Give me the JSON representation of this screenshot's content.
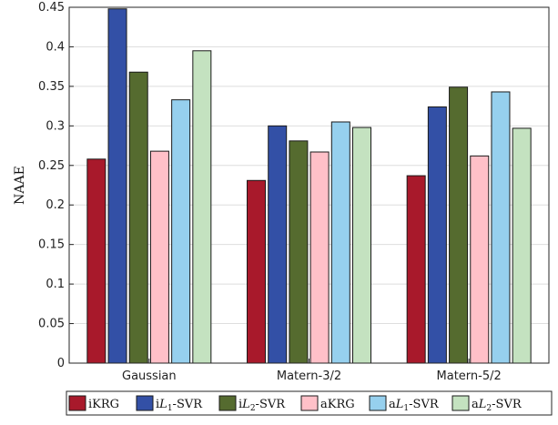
{
  "chart_data": {
    "type": "bar",
    "categories": [
      "Gaussian",
      "Matern-3/2",
      "Matern-5/2"
    ],
    "series": [
      {
        "name": "iKRG",
        "color": "#a8192b",
        "values": [
          0.258,
          0.231,
          0.237
        ]
      },
      {
        "name": "iL1-SVR",
        "color": "#3350a6",
        "values": [
          0.448,
          0.3,
          0.324
        ]
      },
      {
        "name": "iL2-SVR",
        "color": "#556b2f",
        "values": [
          0.368,
          0.281,
          0.349
        ]
      },
      {
        "name": "aKRG",
        "color": "#ffc0c8",
        "values": [
          0.268,
          0.267,
          0.262
        ]
      },
      {
        "name": "aL1-SVR",
        "color": "#96d0ee",
        "values": [
          0.333,
          0.305,
          0.343
        ]
      },
      {
        "name": "aL2-SVR",
        "color": "#c4e2c0",
        "values": [
          0.395,
          0.298,
          0.297
        ]
      }
    ],
    "legend_labels": [
      {
        "pre": "iKRG",
        "italic": "",
        "sub": "",
        "post": ""
      },
      {
        "pre": "i",
        "italic": "L",
        "sub": "1",
        "post": "-SVR"
      },
      {
        "pre": "i",
        "italic": "L",
        "sub": "2",
        "post": "-SVR"
      },
      {
        "pre": "aKRG",
        "italic": "",
        "sub": "",
        "post": ""
      },
      {
        "pre": "a",
        "italic": "L",
        "sub": "1",
        "post": "-SVR"
      },
      {
        "pre": "a",
        "italic": "L",
        "sub": "2",
        "post": "-SVR"
      }
    ],
    "ylabel": "NAAE",
    "xlabel": "",
    "title": "",
    "ylim": [
      0,
      0.45
    ],
    "yticks": [
      "0",
      "0.05",
      "0.1",
      "0.15",
      "0.2",
      "0.25",
      "0.3",
      "0.35",
      "0.4",
      "0.45"
    ],
    "grid": true,
    "legend_position": "bottom"
  }
}
